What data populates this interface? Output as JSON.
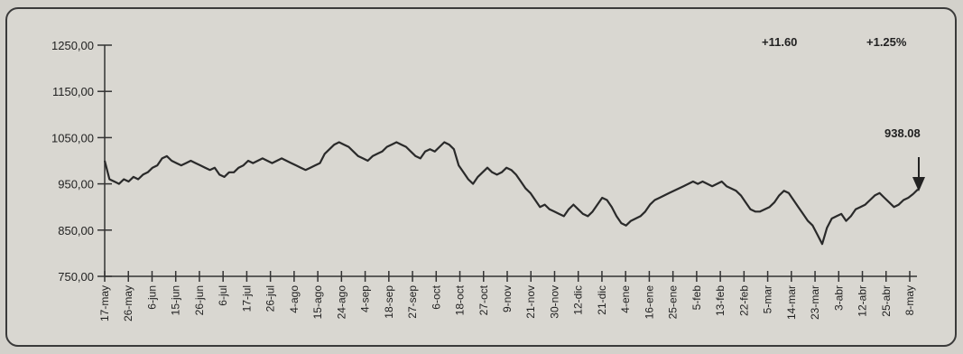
{
  "chart_data": {
    "type": "line",
    "title": "",
    "xlabel": "",
    "ylabel": "",
    "ylim": [
      750,
      1250
    ],
    "y_ticks": [
      "1250,00",
      "1150,00",
      "1050,00",
      "950,00",
      "850,00",
      "750,00"
    ],
    "x_tick_labels": [
      "17-may",
      "26-may",
      "6-jun",
      "15-jun",
      "26-jun",
      "6-jul",
      "17-jul",
      "26-jul",
      "4-ago",
      "15-ago",
      "24-ago",
      "4-sep",
      "18-sep",
      "27-sep",
      "6-oct",
      "18-oct",
      "27-oct",
      "9-nov",
      "21-nov",
      "30-nov",
      "12-dic",
      "21-dic",
      "4-ene",
      "16-ene",
      "25-ene",
      "5-feb",
      "13-feb",
      "22-feb",
      "5-mar",
      "14-mar",
      "23-mar",
      "3-abr",
      "12-abr",
      "25-abr",
      "8-may"
    ],
    "grid": false,
    "series": [
      {
        "values": [
          1000,
          960,
          955,
          950,
          960,
          955,
          965,
          960,
          970,
          975,
          985,
          990,
          1005,
          1010,
          1000,
          995,
          990,
          995,
          1000,
          995,
          990,
          985,
          980,
          985,
          970,
          965,
          975,
          975,
          985,
          990,
          1000,
          995,
          1000,
          1005,
          1000,
          995,
          1000,
          1005,
          1000,
          995,
          990,
          985,
          980,
          985,
          990,
          995,
          1015,
          1025,
          1035,
          1040,
          1035,
          1030,
          1020,
          1010,
          1005,
          1000,
          1010,
          1015,
          1020,
          1030,
          1035,
          1040,
          1035,
          1030,
          1020,
          1010,
          1005,
          1020,
          1025,
          1020,
          1030,
          1040,
          1035,
          1025,
          990,
          975,
          960,
          950,
          965,
          975,
          985,
          975,
          970,
          975,
          985,
          980,
          970,
          955,
          940,
          930,
          915,
          900,
          905,
          895,
          890,
          885,
          880,
          895,
          905,
          895,
          885,
          880,
          890,
          905,
          920,
          915,
          900,
          880,
          865,
          860,
          870,
          875,
          880,
          890,
          905,
          915,
          920,
          925,
          930,
          935,
          940,
          945,
          950,
          955,
          950,
          955,
          950,
          945,
          950,
          955,
          945,
          940,
          935,
          925,
          910,
          895,
          890,
          890,
          895,
          900,
          910,
          925,
          935,
          930,
          915,
          900,
          885,
          870,
          860,
          840,
          820,
          855,
          875,
          880,
          885,
          870,
          880,
          895,
          900,
          905,
          915,
          925,
          930,
          920,
          910,
          900,
          905,
          915,
          920,
          928,
          938
        ]
      }
    ],
    "annotations": {
      "change": "+11.60",
      "pct_change": "+1.25%",
      "last_value": "938.08"
    }
  }
}
